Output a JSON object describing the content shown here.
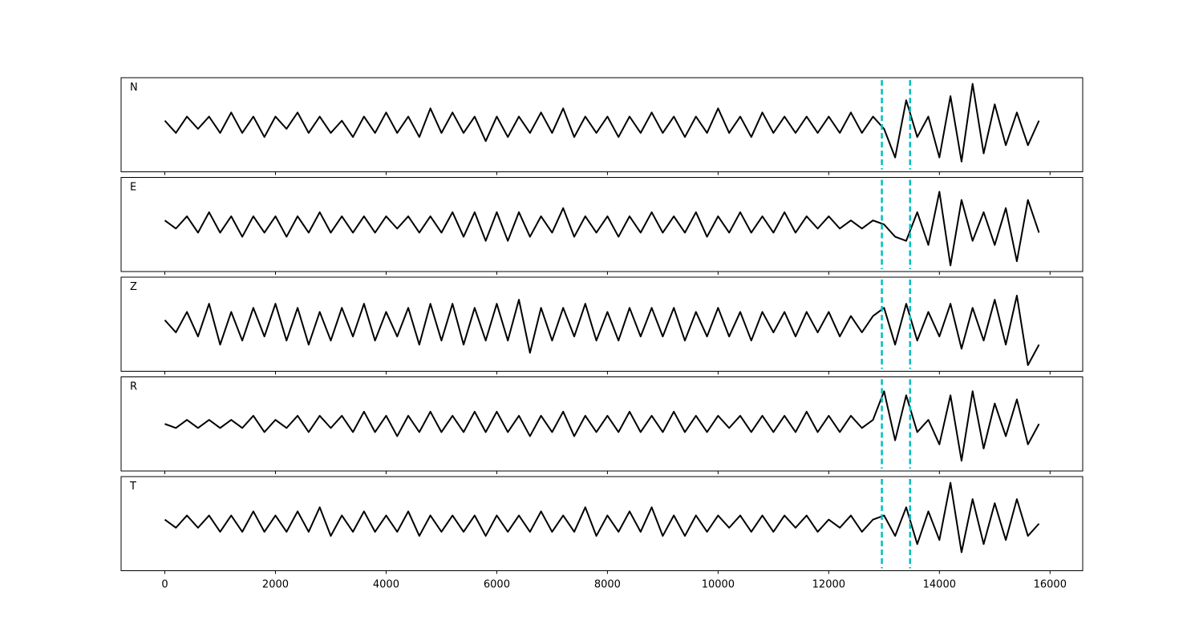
{
  "chart_data": [
    {
      "type": "line",
      "title": "N",
      "xlim": [
        -790,
        16590
      ],
      "ylim": [
        -1.15,
        1.15
      ],
      "xticks": [
        0,
        2000,
        4000,
        6000,
        8000,
        10000,
        12000,
        14000,
        16000
      ],
      "show_xtick_labels": false,
      "vlines": [
        12960,
        13470
      ],
      "vline_color": "#00bfbf",
      "x": [
        0,
        200,
        400,
        600,
        800,
        1000,
        1200,
        1400,
        1600,
        1800,
        2000,
        2200,
        2400,
        2600,
        2800,
        3000,
        3200,
        3400,
        3600,
        3800,
        4000,
        4200,
        4400,
        4600,
        4800,
        5000,
        5200,
        5400,
        5600,
        5800,
        6000,
        6200,
        6400,
        6600,
        6800,
        7000,
        7200,
        7400,
        7600,
        7800,
        8000,
        8200,
        8400,
        8600,
        8800,
        9000,
        9200,
        9400,
        9600,
        9800,
        10000,
        10200,
        10400,
        10600,
        10800,
        11000,
        11200,
        11400,
        11600,
        11800,
        12000,
        12200,
        12400,
        12600,
        12800,
        13000,
        13200,
        13400,
        13600,
        13800,
        14000,
        14200,
        14400,
        14600,
        14800,
        15000,
        15200,
        15400,
        15600,
        15800
      ],
      "series": [
        {
          "name": "N",
          "color": "#000000",
          "values": [
            0.1,
            -0.2,
            0.2,
            -0.1,
            0.2,
            -0.2,
            0.3,
            -0.2,
            0.2,
            -0.3,
            0.2,
            -0.1,
            0.3,
            -0.2,
            0.2,
            -0.2,
            0.1,
            -0.3,
            0.2,
            -0.2,
            0.3,
            -0.2,
            0.2,
            -0.3,
            0.4,
            -0.2,
            0.3,
            -0.2,
            0.2,
            -0.4,
            0.2,
            -0.3,
            0.2,
            -0.2,
            0.3,
            -0.2,
            0.4,
            -0.3,
            0.2,
            -0.2,
            0.2,
            -0.3,
            0.2,
            -0.2,
            0.3,
            -0.2,
            0.2,
            -0.3,
            0.2,
            -0.2,
            0.4,
            -0.2,
            0.2,
            -0.3,
            0.3,
            -0.2,
            0.2,
            -0.2,
            0.2,
            -0.2,
            0.2,
            -0.2,
            0.3,
            -0.2,
            0.2,
            -0.1,
            -0.8,
            0.6,
            -0.3,
            0.2,
            -0.8,
            0.7,
            -0.9,
            1.0,
            -0.7,
            0.5,
            -0.5,
            0.3,
            -0.5,
            0.1
          ]
        }
      ]
    },
    {
      "type": "line",
      "title": "E",
      "xlim": [
        -790,
        16590
      ],
      "ylim": [
        -1.15,
        1.15
      ],
      "xticks": [
        0,
        2000,
        4000,
        6000,
        8000,
        10000,
        12000,
        14000,
        16000
      ],
      "show_xtick_labels": false,
      "vlines": [
        12960,
        13470
      ],
      "vline_color": "#00bfbf",
      "x": [
        0,
        200,
        400,
        600,
        800,
        1000,
        1200,
        1400,
        1600,
        1800,
        2000,
        2200,
        2400,
        2600,
        2800,
        3000,
        3200,
        3400,
        3600,
        3800,
        4000,
        4200,
        4400,
        4600,
        4800,
        5000,
        5200,
        5400,
        5600,
        5800,
        6000,
        6200,
        6400,
        6600,
        6800,
        7000,
        7200,
        7400,
        7600,
        7800,
        8000,
        8200,
        8400,
        8600,
        8800,
        9000,
        9200,
        9400,
        9600,
        9800,
        10000,
        10200,
        10400,
        10600,
        10800,
        11000,
        11200,
        11400,
        11600,
        11800,
        12000,
        12200,
        12400,
        12600,
        12800,
        13000,
        13200,
        13400,
        13600,
        13800,
        14000,
        14200,
        14400,
        14600,
        14800,
        15000,
        15200,
        15400,
        15600,
        15800
      ],
      "series": [
        {
          "name": "E",
          "color": "#000000",
          "values": [
            0.1,
            -0.1,
            0.2,
            -0.2,
            0.3,
            -0.2,
            0.2,
            -0.3,
            0.2,
            -0.2,
            0.2,
            -0.3,
            0.2,
            -0.2,
            0.3,
            -0.2,
            0.2,
            -0.2,
            0.2,
            -0.2,
            0.2,
            -0.1,
            0.2,
            -0.2,
            0.2,
            -0.2,
            0.3,
            -0.3,
            0.3,
            -0.4,
            0.3,
            -0.4,
            0.3,
            -0.3,
            0.2,
            -0.2,
            0.4,
            -0.3,
            0.2,
            -0.2,
            0.2,
            -0.3,
            0.2,
            -0.2,
            0.3,
            -0.2,
            0.2,
            -0.2,
            0.3,
            -0.3,
            0.2,
            -0.2,
            0.3,
            -0.2,
            0.2,
            -0.2,
            0.3,
            -0.2,
            0.2,
            -0.1,
            0.2,
            -0.1,
            0.1,
            -0.1,
            0.1,
            0.0,
            -0.3,
            -0.4,
            0.3,
            -0.5,
            0.8,
            -1.0,
            0.6,
            -0.4,
            0.3,
            -0.5,
            0.4,
            -0.9,
            0.6,
            -0.2
          ]
        }
      ]
    },
    {
      "type": "line",
      "title": "Z",
      "xlim": [
        -790,
        16590
      ],
      "ylim": [
        -1.15,
        1.15
      ],
      "xticks": [
        0,
        2000,
        4000,
        6000,
        8000,
        10000,
        12000,
        14000,
        16000
      ],
      "show_xtick_labels": false,
      "vlines": [
        12960,
        13470
      ],
      "vline_color": "#00bfbf",
      "x": [
        0,
        200,
        400,
        600,
        800,
        1000,
        1200,
        1400,
        1600,
        1800,
        2000,
        2200,
        2400,
        2600,
        2800,
        3000,
        3200,
        3400,
        3600,
        3800,
        4000,
        4200,
        4400,
        4600,
        4800,
        5000,
        5200,
        5400,
        5600,
        5800,
        6000,
        6200,
        6400,
        6600,
        6800,
        7000,
        7200,
        7400,
        7600,
        7800,
        8000,
        8200,
        8400,
        8600,
        8800,
        9000,
        9200,
        9400,
        9600,
        9800,
        10000,
        10200,
        10400,
        10600,
        10800,
        11000,
        11200,
        11400,
        11600,
        11800,
        12000,
        12200,
        12400,
        12600,
        12800,
        13000,
        13200,
        13400,
        13600,
        13800,
        14000,
        14200,
        14400,
        14600,
        14800,
        15000,
        15200,
        15400,
        15600,
        15800
      ],
      "series": [
        {
          "name": "Z",
          "color": "#000000",
          "values": [
            0.1,
            -0.2,
            0.3,
            -0.3,
            0.5,
            -0.5,
            0.3,
            -0.4,
            0.4,
            -0.3,
            0.5,
            -0.4,
            0.4,
            -0.5,
            0.3,
            -0.4,
            0.4,
            -0.3,
            0.5,
            -0.4,
            0.3,
            -0.3,
            0.4,
            -0.5,
            0.5,
            -0.4,
            0.5,
            -0.5,
            0.4,
            -0.4,
            0.5,
            -0.4,
            0.6,
            -0.7,
            0.4,
            -0.4,
            0.4,
            -0.3,
            0.5,
            -0.4,
            0.3,
            -0.4,
            0.4,
            -0.3,
            0.4,
            -0.3,
            0.4,
            -0.4,
            0.3,
            -0.3,
            0.4,
            -0.3,
            0.3,
            -0.4,
            0.3,
            -0.2,
            0.3,
            -0.3,
            0.3,
            -0.2,
            0.3,
            -0.3,
            0.2,
            -0.2,
            0.2,
            0.4,
            -0.5,
            0.5,
            -0.4,
            0.3,
            -0.3,
            0.5,
            -0.6,
            0.4,
            -0.4,
            0.6,
            -0.5,
            0.7,
            -1.0,
            -0.5
          ]
        }
      ]
    },
    {
      "type": "line",
      "title": "R",
      "xlim": [
        -790,
        16590
      ],
      "ylim": [
        -1.15,
        1.15
      ],
      "xticks": [
        0,
        2000,
        4000,
        6000,
        8000,
        10000,
        12000,
        14000,
        16000
      ],
      "show_xtick_labels": false,
      "vlines": [
        12960,
        13470
      ],
      "vline_color": "#00bfbf",
      "x": [
        0,
        200,
        400,
        600,
        800,
        1000,
        1200,
        1400,
        1600,
        1800,
        2000,
        2200,
        2400,
        2600,
        2800,
        3000,
        3200,
        3400,
        3600,
        3800,
        4000,
        4200,
        4400,
        4600,
        4800,
        5000,
        5200,
        5400,
        5600,
        5800,
        6000,
        6200,
        6400,
        6600,
        6800,
        7000,
        7200,
        7400,
        7600,
        7800,
        8000,
        8200,
        8400,
        8600,
        8800,
        9000,
        9200,
        9400,
        9600,
        9800,
        10000,
        10200,
        10400,
        10600,
        10800,
        11000,
        11200,
        11400,
        11600,
        11800,
        12000,
        12200,
        12400,
        12600,
        12800,
        13000,
        13200,
        13400,
        13600,
        13800,
        14000,
        14200,
        14400,
        14600,
        14800,
        15000,
        15200,
        15400,
        15600,
        15800
      ],
      "series": [
        {
          "name": "R",
          "color": "#000000",
          "values": [
            0.0,
            -0.1,
            0.1,
            -0.1,
            0.1,
            -0.1,
            0.1,
            -0.1,
            0.2,
            -0.2,
            0.1,
            -0.1,
            0.2,
            -0.2,
            0.2,
            -0.1,
            0.2,
            -0.2,
            0.3,
            -0.2,
            0.2,
            -0.3,
            0.2,
            -0.2,
            0.3,
            -0.2,
            0.2,
            -0.2,
            0.3,
            -0.2,
            0.3,
            -0.2,
            0.2,
            -0.3,
            0.2,
            -0.2,
            0.3,
            -0.3,
            0.2,
            -0.2,
            0.2,
            -0.2,
            0.3,
            -0.2,
            0.2,
            -0.2,
            0.3,
            -0.2,
            0.2,
            -0.2,
            0.2,
            -0.1,
            0.2,
            -0.2,
            0.2,
            -0.2,
            0.2,
            -0.2,
            0.3,
            -0.2,
            0.2,
            -0.2,
            0.2,
            -0.1,
            0.1,
            0.8,
            -0.4,
            0.7,
            -0.2,
            0.1,
            -0.5,
            0.7,
            -0.9,
            0.8,
            -0.6,
            0.5,
            -0.3,
            0.6,
            -0.5,
            0.0
          ]
        }
      ]
    },
    {
      "type": "line",
      "title": "T",
      "xlim": [
        -790,
        16590
      ],
      "ylim": [
        -1.15,
        1.15
      ],
      "xticks": [
        0,
        2000,
        4000,
        6000,
        8000,
        10000,
        12000,
        14000,
        16000
      ],
      "show_xtick_labels": true,
      "vlines": [
        12960,
        13470
      ],
      "vline_color": "#00bfbf",
      "x": [
        0,
        200,
        400,
        600,
        800,
        1000,
        1200,
        1400,
        1600,
        1800,
        2000,
        2200,
        2400,
        2600,
        2800,
        3000,
        3200,
        3400,
        3600,
        3800,
        4000,
        4200,
        4400,
        4600,
        4800,
        5000,
        5200,
        5400,
        5600,
        5800,
        6000,
        6200,
        6400,
        6600,
        6800,
        7000,
        7200,
        7400,
        7600,
        7800,
        8000,
        8200,
        8400,
        8600,
        8800,
        9000,
        9200,
        9400,
        9600,
        9800,
        10000,
        10200,
        10400,
        10600,
        10800,
        11000,
        11200,
        11400,
        11600,
        11800,
        12000,
        12200,
        12400,
        12600,
        12800,
        13000,
        13200,
        13400,
        13600,
        13800,
        14000,
        14200,
        14400,
        14600,
        14800,
        15000,
        15200,
        15400,
        15600,
        15800
      ],
      "series": [
        {
          "name": "T",
          "color": "#000000",
          "values": [
            0.1,
            -0.1,
            0.2,
            -0.1,
            0.2,
            -0.2,
            0.2,
            -0.2,
            0.3,
            -0.2,
            0.2,
            -0.2,
            0.3,
            -0.2,
            0.4,
            -0.3,
            0.2,
            -0.2,
            0.3,
            -0.2,
            0.2,
            -0.2,
            0.3,
            -0.3,
            0.2,
            -0.2,
            0.2,
            -0.2,
            0.2,
            -0.3,
            0.2,
            -0.2,
            0.2,
            -0.2,
            0.3,
            -0.2,
            0.2,
            -0.2,
            0.4,
            -0.3,
            0.2,
            -0.2,
            0.3,
            -0.2,
            0.4,
            -0.3,
            0.2,
            -0.3,
            0.2,
            -0.2,
            0.2,
            -0.1,
            0.2,
            -0.2,
            0.2,
            -0.2,
            0.2,
            -0.1,
            0.2,
            -0.2,
            0.1,
            -0.1,
            0.2,
            -0.2,
            0.1,
            0.2,
            -0.3,
            0.4,
            -0.5,
            0.3,
            -0.4,
            1.0,
            -0.7,
            0.6,
            -0.5,
            0.5,
            -0.4,
            0.6,
            -0.3,
            0.0
          ]
        }
      ]
    }
  ]
}
